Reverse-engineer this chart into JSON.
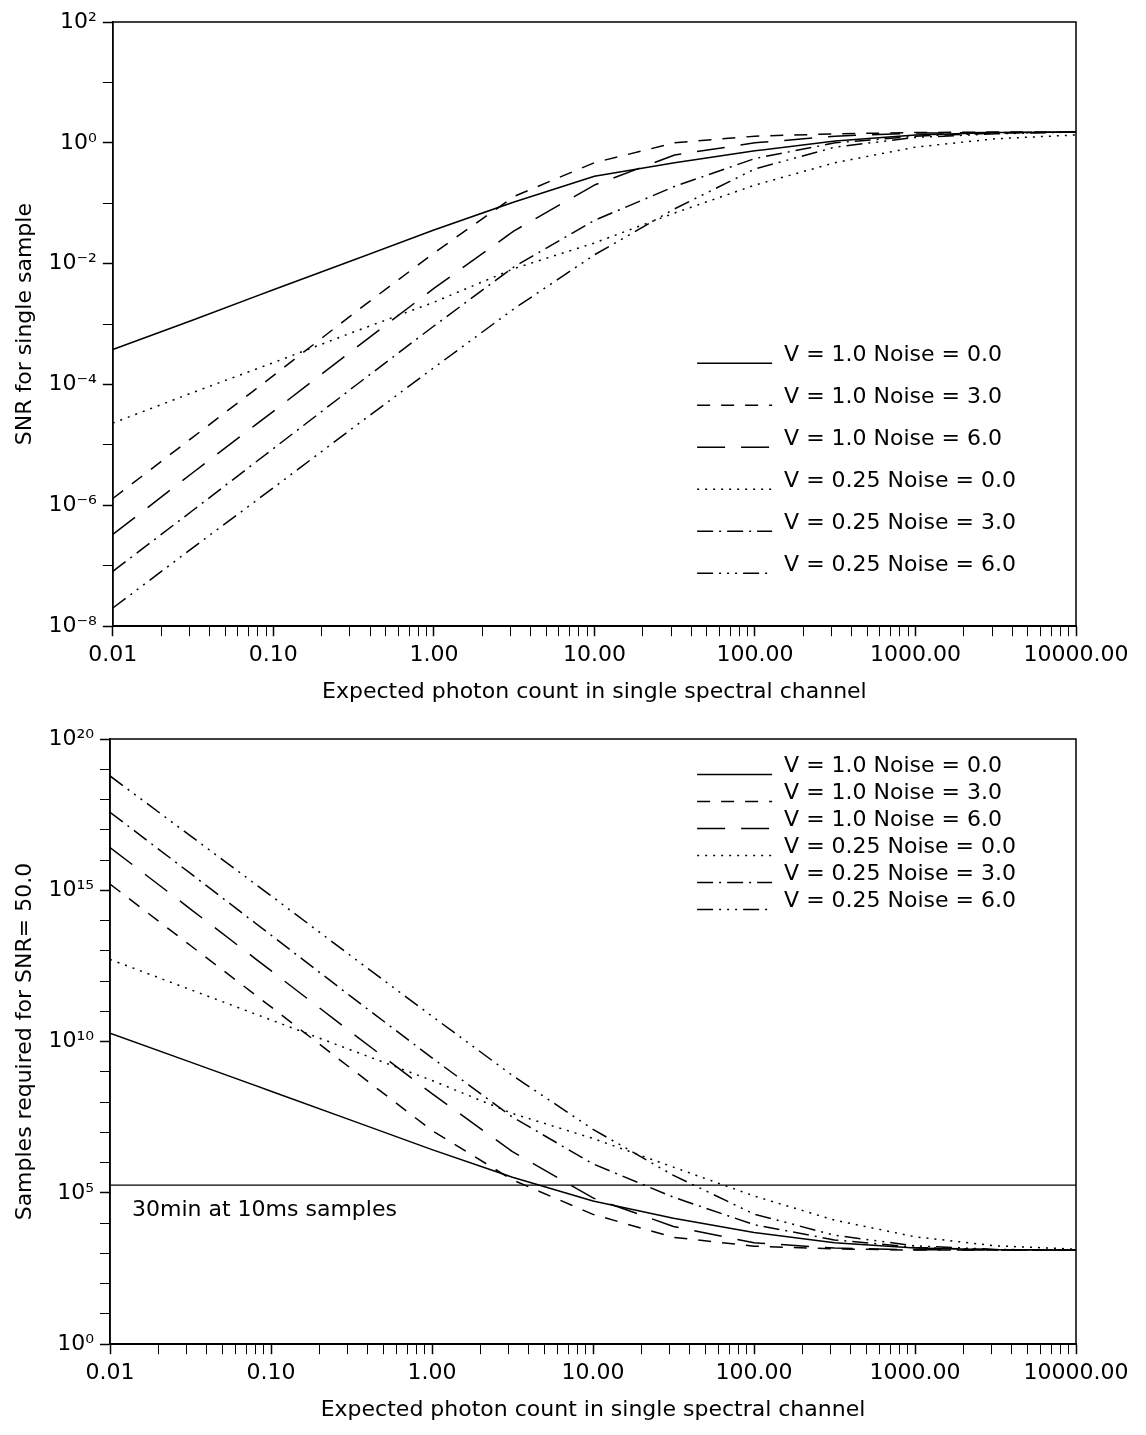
{
  "chart_data": [
    {
      "type": "line",
      "log": "xy",
      "xlabel": "Expected photon count in single spectral channel",
      "ylabel": "SNR for single sample",
      "legend": "bottom right",
      "grid": false,
      "x": [
        0.01,
        0.0316,
        0.1,
        0.316,
        1,
        3.16,
        10,
        31.6,
        100,
        316,
        1000,
        3162,
        10000
      ],
      "xlim": [
        0.01,
        10000
      ],
      "xticks": [
        {
          "value": 0.01,
          "label": "0.01"
        },
        {
          "value": 0.02,
          "label": null
        },
        {
          "value": 0.03,
          "label": null
        },
        {
          "value": 0.04,
          "label": null
        },
        {
          "value": 0.05,
          "label": null
        },
        {
          "value": 0.06,
          "label": null
        },
        {
          "value": 0.07,
          "label": null
        },
        {
          "value": 0.08,
          "label": null
        },
        {
          "value": 0.09,
          "label": null
        },
        {
          "value": 0.1,
          "label": "0.10"
        },
        {
          "value": 0.2,
          "label": null
        },
        {
          "value": 0.3,
          "label": null
        },
        {
          "value": 0.4,
          "label": null
        },
        {
          "value": 0.5,
          "label": null
        },
        {
          "value": 0.6,
          "label": null
        },
        {
          "value": 0.7,
          "label": null
        },
        {
          "value": 0.8,
          "label": null
        },
        {
          "value": 0.9,
          "label": null
        },
        {
          "value": 1,
          "label": "1.00"
        },
        {
          "value": 2,
          "label": null
        },
        {
          "value": 3,
          "label": null
        },
        {
          "value": 4,
          "label": null
        },
        {
          "value": 5,
          "label": null
        },
        {
          "value": 6,
          "label": null
        },
        {
          "value": 7,
          "label": null
        },
        {
          "value": 8,
          "label": null
        },
        {
          "value": 9,
          "label": null
        },
        {
          "value": 10,
          "label": "10.00"
        },
        {
          "value": 20,
          "label": null
        },
        {
          "value": 30,
          "label": null
        },
        {
          "value": 40,
          "label": null
        },
        {
          "value": 50,
          "label": null
        },
        {
          "value": 60,
          "label": null
        },
        {
          "value": 70,
          "label": null
        },
        {
          "value": 80,
          "label": null
        },
        {
          "value": 90,
          "label": null
        },
        {
          "value": 100,
          "label": "100.00"
        },
        {
          "value": 200,
          "label": null
        },
        {
          "value": 300,
          "label": null
        },
        {
          "value": 400,
          "label": null
        },
        {
          "value": 500,
          "label": null
        },
        {
          "value": 600,
          "label": null
        },
        {
          "value": 700,
          "label": null
        },
        {
          "value": 800,
          "label": null
        },
        {
          "value": 900,
          "label": null
        },
        {
          "value": 1000,
          "label": "1000.00"
        },
        {
          "value": 2000,
          "label": null
        },
        {
          "value": 3000,
          "label": null
        },
        {
          "value": 4000,
          "label": null
        },
        {
          "value": 5000,
          "label": null
        },
        {
          "value": 6000,
          "label": null
        },
        {
          "value": 7000,
          "label": null
        },
        {
          "value": 8000,
          "label": null
        },
        {
          "value": 9000,
          "label": null
        },
        {
          "value": 10000,
          "label": "10000.00"
        }
      ],
      "ylim": [
        1e-08,
        100
      ],
      "yticks": [
        {
          "value": 1e-08,
          "label": "10⁻⁸"
        },
        {
          "value": 1e-07,
          "label": null
        },
        {
          "value": 1e-06,
          "label": "10⁻⁶"
        },
        {
          "value": 1e-05,
          "label": null
        },
        {
          "value": 0.0001,
          "label": "10⁻⁴"
        },
        {
          "value": 0.001,
          "label": null
        },
        {
          "value": 0.01,
          "label": "10⁻²"
        },
        {
          "value": 0.1,
          "label": null
        },
        {
          "value": 1,
          "label": "10⁰"
        },
        {
          "value": 10,
          "label": null
        },
        {
          "value": 100,
          "label": "10²"
        }
      ],
      "series": [
        {
          "name": "V = 1.0 Noise = 0.0",
          "color": "#000000",
          "line_style": "solid",
          "values": [
            0.00038,
            0.00117,
            0.0037,
            0.0115,
            0.036,
            0.105,
            0.28,
            0.47,
            0.74,
            1.07,
            1.35,
            1.48,
            1.51
          ]
        },
        {
          "name": "V = 1.0 Noise = 3.0",
          "color": "#000000",
          "line_style": "dashed",
          "values": [
            1.3e-06,
            1.35e-05,
            0.00014,
            0.0015,
            0.015,
            0.13,
            0.47,
            1.0,
            1.29,
            1.41,
            1.48,
            1.51,
            1.51
          ]
        },
        {
          "name": "V = 1.0 Noise = 6.0",
          "color": "#000000",
          "line_style": "longdashed",
          "values": [
            3.3e-07,
            3.5e-06,
            3.6e-05,
            0.00038,
            0.0039,
            0.035,
            0.2,
            0.63,
            1.0,
            1.29,
            1.45,
            1.48,
            1.51
          ]
        },
        {
          "name": "V = 0.25 Noise = 0.0",
          "color": "#000000",
          "line_style": "dotted",
          "values": [
            2.3e-05,
            7.4e-05,
            0.00023,
            0.00074,
            0.0023,
            0.0083,
            0.022,
            0.069,
            0.2,
            0.47,
            0.85,
            1.17,
            1.35
          ]
        },
        {
          "name": "V = 0.25 Noise = 3.0",
          "color": "#000000",
          "line_style": "dashdot",
          "values": [
            8.1e-08,
            8.3e-07,
            8.7e-06,
            9.1e-05,
            0.00093,
            0.0089,
            0.052,
            0.19,
            0.55,
            1.0,
            1.29,
            1.45,
            1.51
          ]
        },
        {
          "name": "V = 0.25 Noise = 6.0",
          "color": "#000000",
          "line_style": "dashdotdotdot",
          "values": [
            2e-08,
            2e-07,
            1.95e-06,
            1.95e-05,
            0.00019,
            0.0018,
            0.014,
            0.081,
            0.37,
            0.85,
            1.23,
            1.41,
            1.51
          ]
        }
      ]
    },
    {
      "type": "line",
      "log": "xy",
      "xlabel": "Expected photon count in single spectral channel",
      "ylabel": "Samples required for SNR= 50.0",
      "legend": "top right",
      "grid": false,
      "x": [
        0.01,
        0.0316,
        0.1,
        0.316,
        1,
        3.16,
        10,
        31.6,
        100,
        316,
        1000,
        3162,
        10000
      ],
      "xlim": [
        0.01,
        10000
      ],
      "xticks": [
        {
          "value": 0.01,
          "label": "0.01"
        },
        {
          "value": 0.02,
          "label": null
        },
        {
          "value": 0.03,
          "label": null
        },
        {
          "value": 0.04,
          "label": null
        },
        {
          "value": 0.05,
          "label": null
        },
        {
          "value": 0.06,
          "label": null
        },
        {
          "value": 0.07,
          "label": null
        },
        {
          "value": 0.08,
          "label": null
        },
        {
          "value": 0.09,
          "label": null
        },
        {
          "value": 0.1,
          "label": "0.10"
        },
        {
          "value": 0.2,
          "label": null
        },
        {
          "value": 0.3,
          "label": null
        },
        {
          "value": 0.4,
          "label": null
        },
        {
          "value": 0.5,
          "label": null
        },
        {
          "value": 0.6,
          "label": null
        },
        {
          "value": 0.7,
          "label": null
        },
        {
          "value": 0.8,
          "label": null
        },
        {
          "value": 0.9,
          "label": null
        },
        {
          "value": 1,
          "label": "1.00"
        },
        {
          "value": 2,
          "label": null
        },
        {
          "value": 3,
          "label": null
        },
        {
          "value": 4,
          "label": null
        },
        {
          "value": 5,
          "label": null
        },
        {
          "value": 6,
          "label": null
        },
        {
          "value": 7,
          "label": null
        },
        {
          "value": 8,
          "label": null
        },
        {
          "value": 9,
          "label": null
        },
        {
          "value": 10,
          "label": "10.00"
        },
        {
          "value": 20,
          "label": null
        },
        {
          "value": 30,
          "label": null
        },
        {
          "value": 40,
          "label": null
        },
        {
          "value": 50,
          "label": null
        },
        {
          "value": 60,
          "label": null
        },
        {
          "value": 70,
          "label": null
        },
        {
          "value": 80,
          "label": null
        },
        {
          "value": 90,
          "label": null
        },
        {
          "value": 100,
          "label": "100.00"
        },
        {
          "value": 200,
          "label": null
        },
        {
          "value": 300,
          "label": null
        },
        {
          "value": 400,
          "label": null
        },
        {
          "value": 500,
          "label": null
        },
        {
          "value": 600,
          "label": null
        },
        {
          "value": 700,
          "label": null
        },
        {
          "value": 800,
          "label": null
        },
        {
          "value": 900,
          "label": null
        },
        {
          "value": 1000,
          "label": "1000.00"
        },
        {
          "value": 2000,
          "label": null
        },
        {
          "value": 3000,
          "label": null
        },
        {
          "value": 4000,
          "label": null
        },
        {
          "value": 5000,
          "label": null
        },
        {
          "value": 6000,
          "label": null
        },
        {
          "value": 7000,
          "label": null
        },
        {
          "value": 8000,
          "label": null
        },
        {
          "value": 9000,
          "label": null
        },
        {
          "value": 10000,
          "label": "10000.00"
        }
      ],
      "ylim": [
        1,
        1e+20
      ],
      "yticks": [
        {
          "value": 1,
          "label": "10⁰"
        },
        {
          "value": 10.0,
          "label": null
        },
        {
          "value": 100.0,
          "label": null
        },
        {
          "value": 1000.0,
          "label": null
        },
        {
          "value": 10000.0,
          "label": null
        },
        {
          "value": 100000.0,
          "label": "10⁵"
        },
        {
          "value": 1000000.0,
          "label": null
        },
        {
          "value": 10000000.0,
          "label": null
        },
        {
          "value": 100000000.0,
          "label": null
        },
        {
          "value": 1000000000.0,
          "label": null
        },
        {
          "value": 10000000000.0,
          "label": "10¹⁰"
        },
        {
          "value": 100000000000.0,
          "label": null
        },
        {
          "value": 1000000000000.0,
          "label": null
        },
        {
          "value": 10000000000000.0,
          "label": null
        },
        {
          "value": 100000000000000.0,
          "label": null
        },
        {
          "value": 1000000000000000.0,
          "label": "10¹⁵"
        },
        {
          "value": 1e+16,
          "label": null
        },
        {
          "value": 1e+17,
          "label": null
        },
        {
          "value": 1e+18,
          "label": null
        },
        {
          "value": 1e+19,
          "label": null
        },
        {
          "value": 1e+20,
          "label": "10²⁰"
        }
      ],
      "ref_lines": [
        {
          "axis": "y",
          "value": 180000,
          "label": "30min at 10ms samples"
        }
      ],
      "series": [
        {
          "name": "V = 1.0 Noise = 0.0",
          "color": "#000000",
          "line_style": "solid",
          "values": [
            19000000000.0,
            2100000000.0,
            230000000.0,
            25000000.0,
            2700000.0,
            330000.0,
            54000.0,
            14500.0,
            4900,
            2240,
            1500,
            1320,
            1290
          ]
        },
        {
          "name": "V = 1.0 Noise = 3.0",
          "color": "#000000",
          "line_style": "dashed",
          "values": [
            1600000000000000.0,
            15000000000000.0,
            140000000000.0,
            1260000000.0,
            11500000.0,
            270000.0,
            19500.0,
            3400,
            1740,
            1410,
            1290,
            1290,
            1290
          ]
        },
        {
          "name": "V = 1.0 Noise = 6.0",
          "color": "#000000",
          "line_style": "longdashed",
          "values": [
            2.6e+16,
            240000000000000.0,
            2200000000000.0,
            20000000000.0,
            190000000.0,
            2300000.0,
            68000.0,
            7800,
            2240,
            1500,
            1320,
            1290,
            1290
          ]
        },
        {
          "name": "V = 0.25 Noise = 0.0",
          "color": "#000000",
          "line_style": "dotted",
          "values": [
            5200000000000.0,
            520000000000.0,
            52000000000.0,
            5200000000.0,
            520000000.0,
            42000000.0,
            6300000.0,
            710000.0,
            79000.0,
            12600.0,
            3550,
            1780,
            1380
          ]
        },
        {
          "name": "V = 0.25 Noise = 3.0",
          "color": "#000000",
          "line_style": "dashdot",
          "values": [
            3.8e+17,
            3600000000000000.0,
            33000000000000.0,
            300000000000.0,
            2900000000.0,
            32000000.0,
            910000.0,
            72000.0,
            8900,
            2800,
            1580,
            1320,
            1290
          ]
        },
        {
          "name": "V = 0.25 Noise = 6.0",
          "color": "#000000",
          "line_style": "dashdotdotdot",
          "values": [
            6e+18,
            6.3e+16,
            660000000000000.0,
            6600000000000.0,
            69000000000.0,
            760000000.0,
            12600000.0,
            380000.0,
            20000.0,
            4000,
            1780,
            1350,
            1290
          ]
        }
      ]
    }
  ]
}
